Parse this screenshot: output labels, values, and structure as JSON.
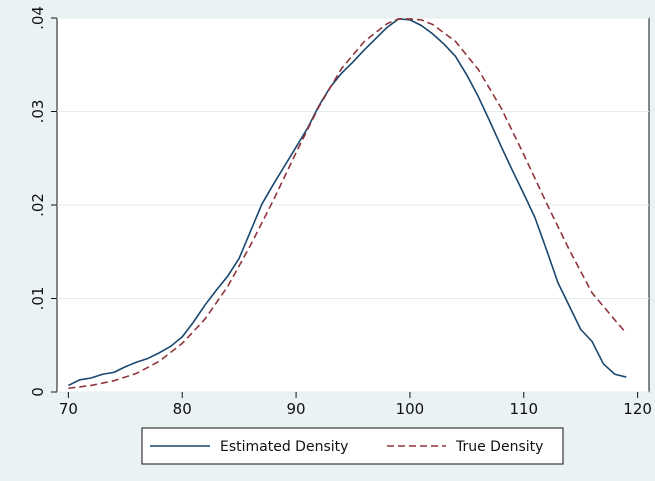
{
  "chart_data": {
    "type": "line",
    "title": "",
    "xlabel": "",
    "ylabel": "",
    "xlim": [
      69,
      121
    ],
    "ylim": [
      0,
      0.04
    ],
    "x_ticks": [
      70,
      80,
      90,
      100,
      110,
      120
    ],
    "x_tick_labels": [
      "70",
      "80",
      "90",
      "100",
      "110",
      "120"
    ],
    "y_ticks": [
      0,
      0.01,
      0.02,
      0.03,
      0.04
    ],
    "y_tick_labels": [
      "0",
      ".01",
      ".02",
      ".03",
      ".04"
    ],
    "grid": "horizontal",
    "legend": "bottom",
    "series": [
      {
        "name": "Estimated Density",
        "color": "#1a476f",
        "style": "solid",
        "x": [
          70,
          71,
          72,
          73,
          74,
          75,
          76,
          77,
          78,
          79,
          80,
          81,
          82,
          83,
          84,
          85,
          86,
          87,
          88,
          89,
          90,
          91,
          92,
          93,
          94,
          95,
          96,
          97,
          98,
          99,
          100,
          101,
          102,
          103,
          104,
          105,
          106,
          107,
          108,
          109,
          110,
          111,
          112,
          113,
          114,
          115,
          116,
          117,
          118,
          119
        ],
        "y": [
          0.0007,
          0.0013,
          0.0015,
          0.0019,
          0.0021,
          0.0027,
          0.0032,
          0.0036,
          0.0042,
          0.0049,
          0.0059,
          0.0075,
          0.0093,
          0.0109,
          0.0124,
          0.0143,
          0.0172,
          0.0201,
          0.0222,
          0.0242,
          0.0262,
          0.0282,
          0.0306,
          0.0326,
          0.0341,
          0.0353,
          0.0366,
          0.0378,
          0.039,
          0.0399,
          0.0398,
          0.0392,
          0.0383,
          0.0372,
          0.0359,
          0.0339,
          0.0316,
          0.029,
          0.0263,
          0.0237,
          0.0212,
          0.0186,
          0.0152,
          0.0117,
          0.0092,
          0.0067,
          0.0054,
          0.003,
          0.0019,
          0.0016
        ]
      },
      {
        "name": "True Density",
        "color": "#90353b",
        "style": "dashed",
        "x": [
          70,
          72,
          74,
          76,
          78,
          80,
          82,
          84,
          86,
          88,
          90,
          92,
          94,
          96,
          98,
          99,
          100,
          101,
          102,
          104,
          106,
          108,
          110,
          112,
          114,
          116,
          118,
          119
        ],
        "y": [
          0.0004,
          0.0007,
          0.0012,
          0.002,
          0.0033,
          0.0052,
          0.0078,
          0.0113,
          0.0157,
          0.0205,
          0.0256,
          0.0305,
          0.0346,
          0.0375,
          0.0394,
          0.0399,
          0.0399,
          0.0398,
          0.0393,
          0.0375,
          0.0345,
          0.0304,
          0.0254,
          0.0202,
          0.0152,
          0.0106,
          0.0077,
          0.0063
        ]
      }
    ]
  }
}
